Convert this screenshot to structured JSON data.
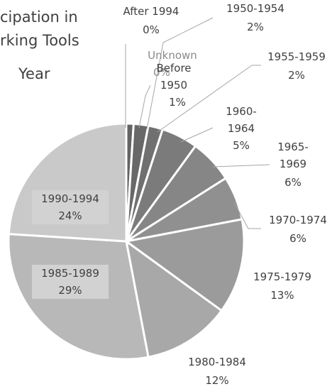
{
  "chart_data": {
    "type": "pie",
    "title_lines": [
      "cipation in",
      "rking Tools",
      "Year"
    ],
    "categories": [
      "After 1994",
      "Unknown",
      "Before 1950",
      "1950-1954",
      "1955-1959",
      "1960-1964",
      "1965-1969",
      "1970-1974",
      "1975-1979",
      "1980-1984",
      "1985-1989",
      "1990-1994"
    ],
    "values": [
      0,
      0,
      1,
      2,
      2,
      5,
      6,
      6,
      13,
      12,
      29,
      24
    ],
    "value_labels": [
      "0%",
      "0%",
      "1%",
      "2%",
      "2%",
      "5%",
      "6%",
      "6%",
      "13%",
      "12%",
      "29%",
      "24%"
    ],
    "colors": [
      "#5a5a5a",
      "#5e5e5e",
      "#636363",
      "#686868",
      "#707070",
      "#7b7b7b",
      "#868686",
      "#909090",
      "#9b9b9b",
      "#a8a8a8",
      "#b8b8b8",
      "#c9c9c9"
    ]
  }
}
